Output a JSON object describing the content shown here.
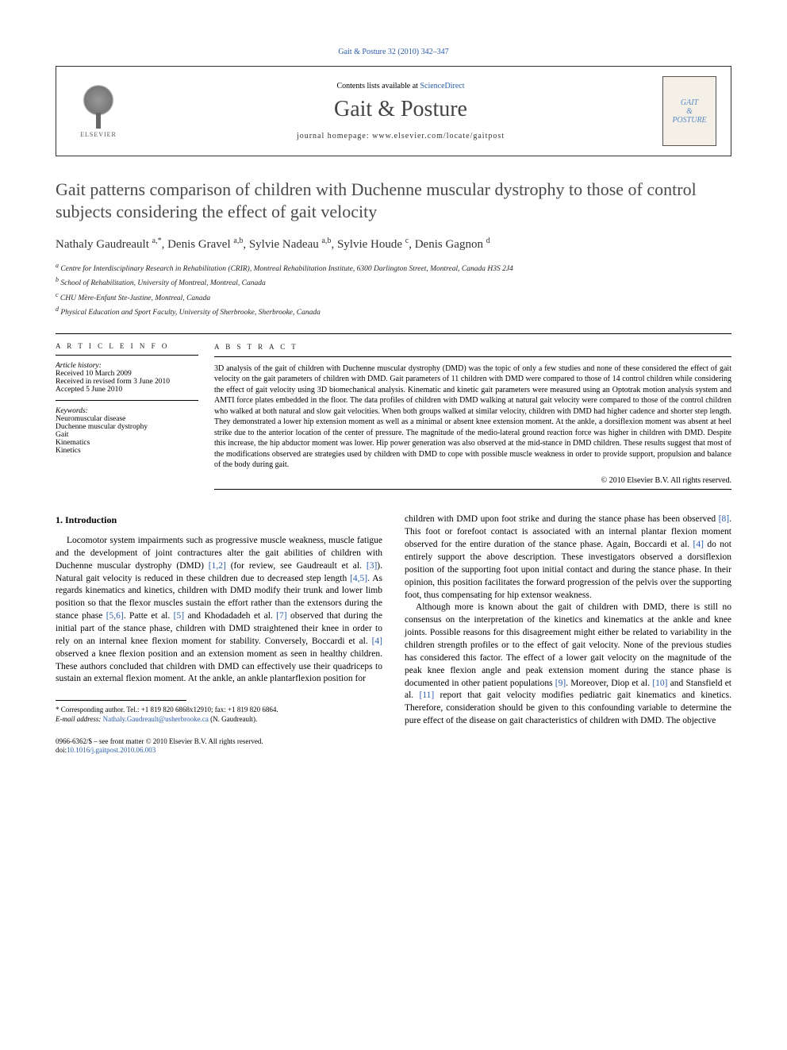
{
  "journal_header_link": "Gait & Posture 32 (2010) 342–347",
  "masthead": {
    "contents_line_prefix": "Contents lists available at ",
    "contents_line_link": "ScienceDirect",
    "journal_name": "Gait & Posture",
    "homepage_prefix": "journal homepage: ",
    "homepage_url": "www.elsevier.com/locate/gaitpost",
    "elsevier_label": "ELSEVIER",
    "cover_line1": "GAIT",
    "cover_amp": "&",
    "cover_line2": "POSTURE"
  },
  "title": "Gait patterns comparison of children with Duchenne muscular dystrophy to those of control subjects considering the effect of gait velocity",
  "authors_html": "Nathaly Gaudreault <sup>a,*</sup>, Denis Gravel <sup>a,b</sup>, Sylvie Nadeau <sup>a,b</sup>, Sylvie Houde <sup>c</sup>, Denis Gagnon <sup>d</sup>",
  "affiliations": [
    "a Centre for Interdisciplinary Research in Rehabilitation (CRIR), Montreal Rehabilitation Institute, 6300 Darlington Street, Montreal, Canada H3S 2J4",
    "b School of Rehabilitation, University of Montreal, Montreal, Canada",
    "c CHU Mère-Enfant Ste-Justine, Montreal, Canada",
    "d Physical Education and Sport Faculty, University of Sherbrooke, Sherbrooke, Canada"
  ],
  "article_info": {
    "label": "A R T I C L E   I N F O",
    "history_label": "Article history:",
    "history": [
      "Received 10 March 2009",
      "Received in revised form 3 June 2010",
      "Accepted 5 June 2010"
    ],
    "keywords_label": "Keywords:",
    "keywords": [
      "Neuromuscular disease",
      "Duchenne muscular dystrophy",
      "Gait",
      "Kinematics",
      "Kinetics"
    ]
  },
  "abstract": {
    "label": "A B S T R A C T",
    "text": "3D analysis of the gait of children with Duchenne muscular dystrophy (DMD) was the topic of only a few studies and none of these considered the effect of gait velocity on the gait parameters of children with DMD. Gait parameters of 11 children with DMD were compared to those of 14 control children while considering the effect of gait velocity using 3D biomechanical analysis. Kinematic and kinetic gait parameters were measured using an Optotrak motion analysis system and AMTI force plates embedded in the floor. The data profiles of children with DMD walking at natural gait velocity were compared to those of the control children who walked at both natural and slow gait velocities. When both groups walked at similar velocity, children with DMD had higher cadence and shorter step length. They demonstrated a lower hip extension moment as well as a minimal or absent knee extension moment. At the ankle, a dorsiflexion moment was absent at heel strike due to the anterior location of the center of pressure. The magnitude of the medio-lateral ground reaction force was higher in children with DMD. Despite this increase, the hip abductor moment was lower. Hip power generation was also observed at the mid-stance in DMD children. These results suggest that most of the modifications observed are strategies used by children with DMD to cope with possible muscle weakness in order to provide support, propulsion and balance of the body during gait.",
    "copyright": "© 2010 Elsevier B.V. All rights reserved."
  },
  "body": {
    "heading": "1. Introduction",
    "col1_p1": "Locomotor system impairments such as progressive muscle weakness, muscle fatigue and the development of joint contractures alter the gait abilities of children with Duchenne muscular dystrophy (DMD) [1,2] (for review, see Gaudreault et al. [3]). Natural gait velocity is reduced in these children due to decreased step length [4,5]. As regards kinematics and kinetics, children with DMD modify their trunk and lower limb position so that the flexor muscles sustain the effort rather than the extensors during the stance phase [5,6]. Patte et al. [5] and Khodadadeh et al. [7] observed that during the initial part of the stance phase, children with DMD straightened their knee in order to rely on an internal knee flexion moment for stability. Conversely, Boccardi et al. [4] observed a knee flexion position and an extension moment as seen in healthy children. These authors concluded that children with DMD can effectively use their quadriceps to sustain an external flexion moment. At the ankle, an ankle plantarflexion position for",
    "col2_p1": "children with DMD upon foot strike and during the stance phase has been observed [8]. This foot or forefoot contact is associated with an internal plantar flexion moment observed for the entire duration of the stance phase. Again, Boccardi et al. [4] do not entirely support the above description. These investigators observed a dorsiflexion position of the supporting foot upon initial contact and during the stance phase. In their opinion, this position facilitates the forward progression of the pelvis over the supporting foot, thus compensating for hip extensor weakness.",
    "col2_p2": "Although more is known about the gait of children with DMD, there is still no consensus on the interpretation of the kinetics and kinematics at the ankle and knee joints. Possible reasons for this disagreement might either be related to variability in the children strength profiles or to the effect of gait velocity. None of the previous studies has considered this factor. The effect of a lower gait velocity on the magnitude of the peak knee flexion angle and peak extension moment during the stance phase is documented in other patient populations [9]. Moreover, Diop et al. [10] and Stansfield et al. [11] report that gait velocity modifies pediatric gait kinematics and kinetics. Therefore, consideration should be given to this confounding variable to determine the pure effect of the disease on gait characteristics of children with DMD. The objective"
  },
  "footnote": {
    "corresponding": "* Corresponding author. Tel.: +1 819 820 6868x12910; fax: +1 819 820 6864.",
    "email_label": "E-mail address: ",
    "email": "Nathaly.Gaudreault@usherbrooke.ca",
    "email_suffix": " (N. Gaudreault)."
  },
  "footer": {
    "line1": "0966-6362/$ – see front matter © 2010 Elsevier B.V. All rights reserved.",
    "doi_label": "doi:",
    "doi": "10.1016/j.gaitpost.2010.06.003"
  },
  "colors": {
    "link": "#2a5ca8",
    "text": "#000000",
    "title_gray": "#4a4a4a"
  }
}
